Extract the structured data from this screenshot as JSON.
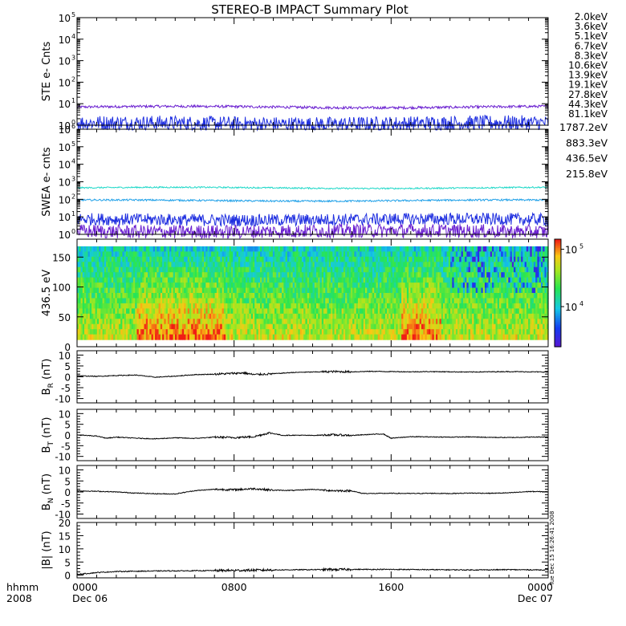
{
  "title": "STEREO-B IMPACT Summary Plot",
  "time_axis": {
    "label_top": "hhmm",
    "label_bottom": "2008",
    "ticks": [
      {
        "hhmm": "0000",
        "date": "Dec 06",
        "hour": 0
      },
      {
        "hhmm": "0800",
        "date": "",
        "hour": 8
      },
      {
        "hhmm": "1600",
        "date": "",
        "hour": 16
      },
      {
        "hhmm": "0000",
        "date": "Dec 07",
        "hour": 24
      }
    ],
    "range_hours": [
      0,
      24
    ]
  },
  "timestamp": "Tue Dec 15 16:26:41 2008",
  "legend_ste": [
    {
      "label": "2.0keV",
      "color": "#9b1fd0"
    },
    {
      "label": "3.6keV",
      "color": "#5a24c8"
    },
    {
      "label": "5.1keV",
      "color": "#1f36e0"
    },
    {
      "label": "6.7keV",
      "color": "#1f8fe0"
    },
    {
      "label": "8.3keV",
      "color": "#1fd0c8"
    },
    {
      "label": "10.6keV",
      "color": "#1fd07a"
    },
    {
      "label": "13.9keV",
      "color": "#3fc81f"
    },
    {
      "label": "19.1keV",
      "color": "#b8d01f"
    },
    {
      "label": "27.8keV",
      "color": "#f0c81f"
    },
    {
      "label": "44.3keV",
      "color": "#f0901f"
    },
    {
      "label": "81.1keV",
      "color": "#e0301f"
    }
  ],
  "legend_swea": [
    {
      "label": "1787.2eV",
      "color": "#6a1fd0"
    },
    {
      "label": "883.3eV",
      "color": "#1f2fe0"
    },
    {
      "label": "436.5eV",
      "color": "#1fa0e8"
    },
    {
      "label": "215.8eV",
      "color": "#1fd8c8"
    }
  ],
  "chart_data": [
    {
      "type": "line",
      "ylabel": "STE e- Cnts",
      "yscale": "log",
      "ylim": [
        1,
        100000
      ],
      "yticks": [
        "10^0",
        "10^1",
        "10^2",
        "10^3",
        "10^4",
        "10^5"
      ],
      "series": [
        {
          "name": "3.6keV",
          "color": "#6a1fd0",
          "level": 7,
          "noise": 0.06
        },
        {
          "name": "5.1keV",
          "color": "#1f2fe0",
          "level": 1.2,
          "noise": 0.35
        }
      ]
    },
    {
      "type": "line",
      "ylabel": "SWEA e- cnts",
      "yscale": "log",
      "ylim": [
        1,
        1000000
      ],
      "yticks": [
        "10^0",
        "10^1",
        "10^2",
        "10^3",
        "10^4",
        "10^5",
        "10^6"
      ],
      "series": [
        {
          "name": "215.8eV",
          "color": "#1fd8c8",
          "level": 450,
          "noise": 0.04
        },
        {
          "name": "436.5eV",
          "color": "#1fa0e8",
          "level": 85,
          "noise": 0.05
        },
        {
          "name": "883.3eV",
          "color": "#1f2fe0",
          "level": 7,
          "noise": 0.35
        },
        {
          "name": "1787.2eV",
          "color": "#6a1fd0",
          "level": 1.5,
          "noise": 0.4
        }
      ]
    },
    {
      "type": "heatmap",
      "ylabel": "436.5 eV",
      "ylim": [
        0,
        180
      ],
      "yticks": [
        0,
        50,
        100,
        150
      ],
      "colorbar": {
        "scale": "log",
        "range": [
          2000,
          150000
        ],
        "ticks": [
          "10^4",
          "10^5"
        ]
      }
    },
    {
      "type": "line",
      "ylabel": "B_R (nT)",
      "ylim": [
        -12,
        12
      ],
      "yticks": [
        -10,
        -5,
        0,
        5,
        10
      ],
      "x": [
        0,
        1,
        2,
        3,
        4,
        5,
        6,
        7,
        8,
        8.5,
        9,
        10,
        11,
        12,
        13,
        14,
        15,
        16,
        17,
        18,
        19,
        20,
        21,
        22,
        23,
        24
      ],
      "y": [
        0.5,
        0.2,
        0.6,
        0.8,
        -0.2,
        0.3,
        1.0,
        1.2,
        1.6,
        1.8,
        1.0,
        1.4,
        2.0,
        2.2,
        2.4,
        2.3,
        2.5,
        2.4,
        2.3,
        2.4,
        2.3,
        2.2,
        2.3,
        2.4,
        2.3,
        2.2
      ]
    },
    {
      "type": "line",
      "ylabel": "B_T (nT)",
      "ylim": [
        -12,
        12
      ],
      "yticks": [
        -10,
        -5,
        0,
        5,
        10
      ],
      "x": [
        0,
        1,
        1.5,
        2,
        3,
        4,
        5,
        6,
        7,
        8,
        9,
        9.8,
        10.5,
        11,
        12,
        13,
        14,
        15,
        15.6,
        16,
        17,
        18,
        19,
        20,
        21,
        22,
        23,
        24
      ],
      "y": [
        0.0,
        -0.5,
        -1.5,
        -1.0,
        -1.5,
        -1.8,
        -1.3,
        -1.6,
        -1.0,
        -1.2,
        -0.8,
        1.0,
        -0.2,
        -0.1,
        -0.2,
        0.1,
        -0.2,
        0.3,
        0.5,
        -1.5,
        -0.8,
        -0.9,
        -1.0,
        -0.9,
        -1.1,
        -1.2,
        -1.0,
        -0.9
      ]
    },
    {
      "type": "line",
      "ylabel": "B_N (nT)",
      "ylim": [
        -12,
        12
      ],
      "yticks": [
        -10,
        -5,
        0,
        5,
        10
      ],
      "x": [
        0,
        1,
        2,
        3,
        4,
        5,
        6,
        7,
        8,
        9,
        10,
        11,
        12,
        13,
        14,
        14.5,
        15,
        16,
        17,
        18,
        19,
        20,
        21,
        22,
        23,
        24
      ],
      "y": [
        0.5,
        0.3,
        0.0,
        -0.5,
        -0.8,
        -0.9,
        0.6,
        1.2,
        1.0,
        1.5,
        0.8,
        0.7,
        1.2,
        0.6,
        0.5,
        -0.6,
        -0.7,
        -0.6,
        -0.7,
        -0.6,
        -0.7,
        -0.5,
        -0.6,
        -0.4,
        0.2,
        0.1
      ]
    },
    {
      "type": "line",
      "ylabel": "|B| (nT)",
      "ylim": [
        -1,
        20
      ],
      "yticks": [
        0,
        5,
        10,
        15,
        20
      ],
      "x": [
        0,
        1,
        2,
        4,
        6,
        8,
        10,
        12,
        14,
        16,
        18,
        20,
        22,
        24
      ],
      "y": [
        0.3,
        1.0,
        1.4,
        1.6,
        1.7,
        1.8,
        2.0,
        2.1,
        2.2,
        2.2,
        2.1,
        2.0,
        2.1,
        2.0
      ]
    }
  ]
}
